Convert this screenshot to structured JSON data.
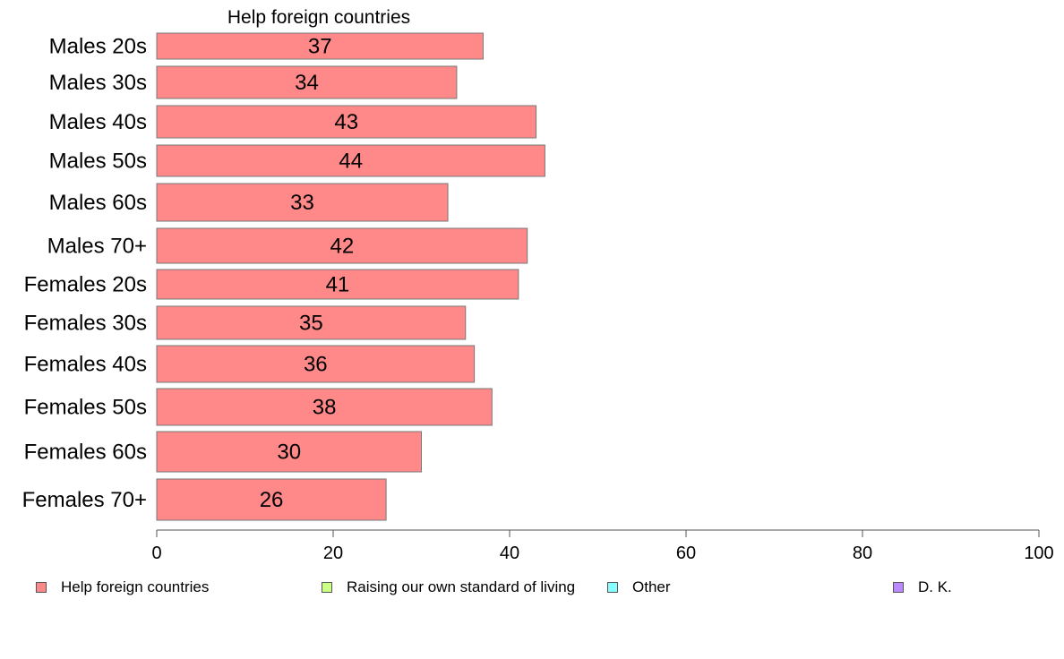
{
  "chart_data": {
    "type": "bar",
    "orientation": "horizontal",
    "title": "Help foreign countries",
    "xlabel": "",
    "ylabel": "",
    "xlim": [
      0,
      100
    ],
    "x_ticks": [
      "0",
      "20",
      "40",
      "60",
      "80",
      "100"
    ],
    "categories": [
      "Males 20s",
      "Males 30s",
      "Males 40s",
      "Males 50s",
      "Males 60s",
      "Males 70+",
      "Females 20s",
      "Females 30s",
      "Females 40s",
      "Females 50s",
      "Females 60s",
      "Females 70+"
    ],
    "series": [
      {
        "name": "Help foreign countries",
        "color": "#ff8888",
        "values": [
          37,
          34,
          43,
          44,
          33,
          42,
          41,
          35,
          36,
          38,
          30,
          26
        ]
      }
    ],
    "grid": false,
    "legend_position": "bottom"
  },
  "legend": [
    {
      "label": "Help foreign countries",
      "color": "#ff8888"
    },
    {
      "label": "Raising our own standard of living",
      "color": "#ccff88"
    },
    {
      "label": "Other",
      "color": "#88ffff"
    },
    {
      "label": "D. K.",
      "color": "#bb88ff"
    }
  ]
}
